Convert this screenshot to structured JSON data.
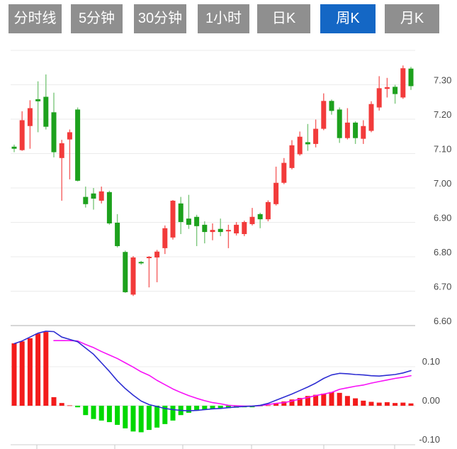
{
  "toolbar": {
    "buttons": [
      {
        "id": "minute-line",
        "label": "分时线",
        "active": false
      },
      {
        "id": "5min",
        "label": "5分钟",
        "active": false
      },
      {
        "id": "30min",
        "label": "30分钟",
        "active": false
      },
      {
        "id": "1hour",
        "label": "1小时",
        "active": false
      },
      {
        "id": "daily-k",
        "label": "日K",
        "active": false
      },
      {
        "id": "weekly-k",
        "label": "周K",
        "active": true
      },
      {
        "id": "monthly-k",
        "label": "月K",
        "active": false
      }
    ]
  },
  "colors": {
    "button_gray": "#8f8f8f",
    "button_active_blue": "#1467c5",
    "candle_up": "#f23b3b",
    "candle_down": "#1da11d",
    "wick_up": "#f56060",
    "wick_down": "#7cc77c",
    "hist_up": "#f31b1b",
    "hist_down": "#00d800",
    "dif_line": "#2d2dd2",
    "dea_line": "#f711f7",
    "grid": "#ebebeb",
    "divider": "#d6d6d6",
    "axis_label": "#4a4a4a"
  },
  "chart_data": {
    "type": "candlestick",
    "title": "Weekly K-line with MACD",
    "selected_period": "周K",
    "price_axis": {
      "tick_labels": [
        "7.30",
        "7.20",
        "7.10",
        "7.00",
        "6.90",
        "6.80",
        "6.70",
        "6.60"
      ],
      "tick_values": [
        7.3,
        7.2,
        7.1,
        7.0,
        6.9,
        6.8,
        6.7,
        6.6
      ],
      "grid_top": 7.4,
      "grid_bottom": 6.6,
      "grid_on": true
    },
    "candles_ohlc": [
      [
        7.12,
        7.126,
        7.104,
        7.114
      ],
      [
        7.11,
        7.223,
        7.108,
        7.197
      ],
      [
        7.18,
        7.255,
        7.114,
        7.232
      ],
      [
        7.258,
        7.31,
        7.162,
        7.252
      ],
      [
        7.265,
        7.33,
        7.17,
        7.178
      ],
      [
        7.22,
        7.277,
        7.089,
        7.104
      ],
      [
        7.087,
        7.14,
        6.963,
        7.13
      ],
      [
        7.141,
        7.17,
        7.025,
        7.162
      ],
      [
        7.228,
        7.234,
        7.019,
        7.021
      ],
      [
        6.974,
        7.004,
        6.943,
        6.953
      ],
      [
        6.984,
        7.0,
        6.937,
        6.969
      ],
      [
        6.963,
        7.004,
        6.955,
        6.99
      ],
      [
        6.988,
        6.992,
        6.893,
        6.897
      ],
      [
        6.899,
        6.924,
        6.827,
        6.831
      ],
      [
        6.814,
        6.818,
        6.695,
        6.697
      ],
      [
        6.69,
        6.802,
        6.686,
        6.798
      ],
      [
        6.785,
        6.788,
        6.777,
        6.781
      ],
      [
        6.796,
        6.802,
        6.711,
        6.8
      ],
      [
        6.798,
        6.82,
        6.726,
        6.815
      ],
      [
        6.825,
        6.891,
        6.808,
        6.883
      ],
      [
        6.856,
        6.965,
        6.85,
        6.963
      ],
      [
        6.955,
        6.974,
        6.866,
        6.901
      ],
      [
        6.911,
        6.98,
        6.881,
        6.893
      ],
      [
        6.916,
        6.922,
        6.831,
        6.889
      ],
      [
        6.893,
        6.903,
        6.839,
        6.872
      ],
      [
        6.872,
        6.897,
        6.848,
        6.878
      ],
      [
        6.881,
        6.911,
        6.86,
        6.872
      ],
      [
        6.874,
        6.893,
        6.825,
        6.878
      ],
      [
        6.868,
        6.901,
        6.862,
        6.893
      ],
      [
        6.866,
        6.905,
        6.86,
        6.901
      ],
      [
        6.895,
        6.942,
        6.891,
        6.916
      ],
      [
        6.924,
        6.928,
        6.883,
        6.909
      ],
      [
        6.909,
        6.964,
        6.903,
        6.959
      ],
      [
        6.953,
        7.062,
        6.949,
        7.015
      ],
      [
        7.015,
        7.087,
        7.011,
        7.073
      ],
      [
        7.058,
        7.139,
        7.054,
        7.124
      ],
      [
        7.098,
        7.164,
        7.094,
        7.149
      ],
      [
        7.133,
        7.186,
        7.108,
        7.127
      ],
      [
        7.128,
        7.199,
        7.118,
        7.172
      ],
      [
        7.172,
        7.275,
        7.168,
        7.253
      ],
      [
        7.253,
        7.257,
        7.213,
        7.224
      ],
      [
        7.228,
        7.234,
        7.131,
        7.145
      ],
      [
        7.145,
        7.232,
        7.141,
        7.19
      ],
      [
        7.19,
        7.194,
        7.128,
        7.145
      ],
      [
        7.143,
        7.197,
        7.128,
        7.18
      ],
      [
        7.166,
        7.252,
        7.162,
        7.244
      ],
      [
        7.234,
        7.325,
        7.225,
        7.29
      ],
      [
        7.288,
        7.32,
        7.263,
        7.293
      ],
      [
        7.294,
        7.3,
        7.245,
        7.273
      ],
      [
        7.263,
        7.356,
        7.259,
        7.348
      ],
      [
        7.347,
        7.352,
        7.285,
        7.296
      ]
    ],
    "macd": {
      "axis_labels": [
        "0.10",
        "0.00",
        "-0.10"
      ],
      "axis_values": [
        0.1,
        0.0,
        -0.1
      ],
      "histogram": [
        0.16,
        0.165,
        0.173,
        0.185,
        0.189,
        0.022,
        0.007,
        0.001,
        -0.004,
        -0.024,
        -0.034,
        -0.038,
        -0.042,
        -0.049,
        -0.058,
        -0.066,
        -0.068,
        -0.062,
        -0.056,
        -0.047,
        -0.038,
        -0.024,
        -0.018,
        -0.013,
        -0.011,
        -0.009,
        -0.007,
        -0.006,
        -0.005,
        -0.004,
        -0.004,
        -0.001,
        0.001,
        0.007,
        0.011,
        0.016,
        0.02,
        0.025,
        0.028,
        0.031,
        0.035,
        0.033,
        0.025,
        0.019,
        0.013,
        0.01,
        0.008,
        0.009,
        0.007,
        0.008,
        0.006
      ],
      "dif": [
        0.159,
        0.166,
        0.176,
        0.186,
        0.191,
        0.19,
        0.176,
        0.17,
        0.164,
        0.148,
        0.132,
        0.11,
        0.088,
        0.064,
        0.044,
        0.027,
        0.012,
        0.003,
        -0.002,
        -0.007,
        -0.01,
        -0.012,
        -0.013,
        -0.012,
        -0.01,
        -0.008,
        -0.007,
        -0.005,
        -0.003,
        -0.002,
        -0.001,
        0.001,
        0.006,
        0.014,
        0.022,
        0.03,
        0.039,
        0.048,
        0.058,
        0.07,
        0.079,
        0.083,
        0.082,
        0.08,
        0.079,
        0.077,
        0.076,
        0.078,
        0.08,
        0.084,
        0.09
      ],
      "dea": [
        null,
        null,
        null,
        null,
        null,
        0.167,
        0.167,
        0.167,
        0.166,
        0.157,
        0.149,
        0.139,
        0.13,
        0.121,
        0.11,
        0.099,
        0.087,
        0.078,
        0.065,
        0.054,
        0.043,
        0.034,
        0.026,
        0.019,
        0.013,
        0.008,
        0.005,
        0.001,
        0.0,
        -0.001,
        -0.001,
        0.0,
        0.003,
        0.006,
        0.008,
        0.012,
        0.017,
        0.021,
        0.026,
        0.03,
        0.034,
        0.042,
        0.046,
        0.05,
        0.053,
        0.058,
        0.062,
        0.066,
        0.07,
        0.073,
        0.077
      ]
    }
  }
}
